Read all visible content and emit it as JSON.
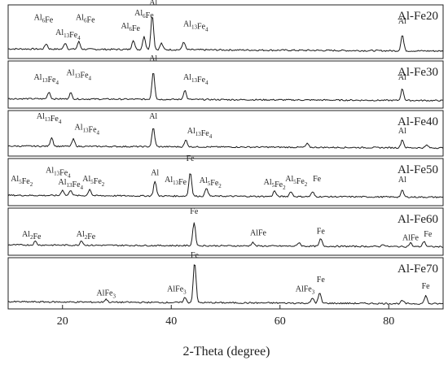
{
  "chart_data": {
    "type": "line",
    "xlabel": "2-Theta (degree)",
    "xlim": [
      10,
      90
    ],
    "xticks": [
      20,
      40,
      60,
      80
    ],
    "grid": false,
    "panels": [
      {
        "name": "Al-Fe20",
        "baseline": 0.18,
        "peaks": [
          [
            17,
            0.1
          ],
          [
            20.5,
            0.12
          ],
          [
            23,
            0.14
          ],
          [
            33,
            0.18
          ],
          [
            35,
            0.25
          ],
          [
            36.5,
            0.65
          ],
          [
            38.2,
            0.12
          ],
          [
            42.3,
            0.15
          ],
          [
            82.5,
            0.3
          ]
        ],
        "labels": [
          {
            "parts": [
              [
                "Al",
                ""
              ],
              [
                "6",
                "sub"
              ],
              [
                "Fe",
                ""
              ]
            ],
            "x": 16.5,
            "y": 0.72
          },
          {
            "parts": [
              [
                "Al",
                ""
              ],
              [
                "13",
                "sub"
              ],
              [
                "Fe",
                ""
              ],
              [
                "4",
                "sub"
              ]
            ],
            "x": 21.0,
            "y": 0.44
          },
          {
            "parts": [
              [
                "Al",
                ""
              ],
              [
                "6",
                "sub"
              ],
              [
                "Fe",
                ""
              ]
            ],
            "x": 24.2,
            "y": 0.72
          },
          {
            "parts": [
              [
                "Al",
                ""
              ],
              [
                "6",
                "sub"
              ],
              [
                "Fe",
                ""
              ]
            ],
            "x": 32.5,
            "y": 0.56
          },
          {
            "parts": [
              [
                "Al",
                ""
              ],
              [
                "6",
                "sub"
              ],
              [
                "Fe",
                ""
              ]
            ],
            "x": 35.0,
            "y": 0.8
          },
          {
            "parts": [
              [
                "Al",
                ""
              ]
            ],
            "x": 36.7,
            "y": 1.0
          },
          {
            "parts": [
              [
                "Al",
                ""
              ],
              [
                "13",
                "sub"
              ],
              [
                "Fe",
                ""
              ],
              [
                "4",
                "sub"
              ]
            ],
            "x": 44.5,
            "y": 0.6
          },
          {
            "parts": [
              [
                "Al",
                ""
              ]
            ],
            "x": 82.5,
            "y": 0.65
          }
        ]
      },
      {
        "name": "Al-Fe30",
        "baseline": 0.2,
        "peaks": [
          [
            17.5,
            0.15
          ],
          [
            21.5,
            0.13
          ],
          [
            36.7,
            0.6
          ],
          [
            42.5,
            0.2
          ],
          [
            82.5,
            0.25
          ]
        ],
        "labels": [
          {
            "parts": [
              [
                "Al",
                ""
              ],
              [
                "13",
                "sub"
              ],
              [
                "Fe",
                ""
              ],
              [
                "4",
                "sub"
              ]
            ],
            "x": 17.0,
            "y": 0.6
          },
          {
            "parts": [
              [
                "Al",
                ""
              ],
              [
                "13",
                "sub"
              ],
              [
                "Fe",
                ""
              ],
              [
                "4",
                "sub"
              ]
            ],
            "x": 23.0,
            "y": 0.7
          },
          {
            "parts": [
              [
                "Al",
                ""
              ]
            ],
            "x": 36.7,
            "y": 1.0
          },
          {
            "parts": [
              [
                "Al",
                ""
              ],
              [
                "13",
                "sub"
              ],
              [
                "Fe",
                ""
              ],
              [
                "4",
                "sub"
              ]
            ],
            "x": 44.5,
            "y": 0.6
          },
          {
            "parts": [
              [
                "Al",
                ""
              ]
            ],
            "x": 82.5,
            "y": 0.6
          }
        ]
      },
      {
        "name": "Al-Fe40",
        "baseline": 0.22,
        "peaks": [
          [
            18,
            0.2
          ],
          [
            22,
            0.16
          ],
          [
            36.7,
            0.42
          ],
          [
            42.7,
            0.15
          ],
          [
            65,
            0.08
          ],
          [
            82.5,
            0.18
          ],
          [
            87,
            0.06
          ]
        ],
        "labels": [
          {
            "parts": [
              [
                "Al",
                ""
              ],
              [
                "13",
                "sub"
              ],
              [
                "Fe",
                ""
              ],
              [
                "4",
                "sub"
              ]
            ],
            "x": 17.5,
            "y": 0.82
          },
          {
            "parts": [
              [
                "Al",
                ""
              ],
              [
                "13",
                "sub"
              ],
              [
                "Fe",
                ""
              ],
              [
                "4",
                "sub"
              ]
            ],
            "x": 24.5,
            "y": 0.58
          },
          {
            "parts": [
              [
                "Al",
                ""
              ]
            ],
            "x": 36.7,
            "y": 0.82
          },
          {
            "parts": [
              [
                "Al",
                ""
              ],
              [
                "13",
                "sub"
              ],
              [
                "Fe",
                ""
              ],
              [
                "4",
                "sub"
              ]
            ],
            "x": 45.2,
            "y": 0.5
          },
          {
            "parts": [
              [
                "Al",
                ""
              ]
            ],
            "x": 82.5,
            "y": 0.5
          }
        ]
      },
      {
        "name": "Al-Fe50",
        "baseline": 0.22,
        "peaks": [
          [
            20,
            0.12
          ],
          [
            21.5,
            0.12
          ],
          [
            25,
            0.14
          ],
          [
            37,
            0.32
          ],
          [
            43.5,
            0.52
          ],
          [
            46.5,
            0.18
          ],
          [
            59,
            0.12
          ],
          [
            62,
            0.11
          ],
          [
            66,
            0.1
          ],
          [
            82.5,
            0.14
          ]
        ],
        "labels": [
          {
            "parts": [
              [
                "Al",
                ""
              ],
              [
                "5",
                "sub"
              ],
              [
                "Fe",
                ""
              ],
              [
                "2",
                "sub"
              ]
            ],
            "x": 12.5,
            "y": 0.52
          },
          {
            "parts": [
              [
                "Al",
                ""
              ],
              [
                "13",
                "sub"
              ],
              [
                "Fe",
                ""
              ],
              [
                "4",
                "sub"
              ]
            ],
            "x": 19.2,
            "y": 0.7
          },
          {
            "parts": [
              [
                "Al",
                ""
              ],
              [
                "13",
                "sub"
              ],
              [
                "Fe",
                ""
              ],
              [
                "4",
                "sub"
              ]
            ],
            "x": 21.5,
            "y": 0.45
          },
          {
            "parts": [
              [
                "Al",
                ""
              ],
              [
                "5",
                "sub"
              ],
              [
                "Fe",
                ""
              ],
              [
                "2",
                "sub"
              ]
            ],
            "x": 25.7,
            "y": 0.52
          },
          {
            "parts": [
              [
                "Al",
                ""
              ]
            ],
            "x": 37.0,
            "y": 0.65
          },
          {
            "parts": [
              [
                "Al",
                ""
              ],
              [
                "13",
                "sub"
              ],
              [
                "Fe",
                ""
              ]
            ],
            "x": 40.8,
            "y": 0.5
          },
          {
            "parts": [
              [
                "Fe",
                ""
              ]
            ],
            "x": 43.5,
            "y": 0.95
          },
          {
            "parts": [
              [
                "Al",
                ""
              ],
              [
                "5",
                "sub"
              ],
              [
                "Fe",
                ""
              ],
              [
                "2",
                "sub"
              ]
            ],
            "x": 47.2,
            "y": 0.48
          },
          {
            "parts": [
              [
                "Al",
                ""
              ],
              [
                "5",
                "sub"
              ],
              [
                "Fe",
                ""
              ],
              [
                "2",
                "sub"
              ]
            ],
            "x": 59.0,
            "y": 0.45
          },
          {
            "parts": [
              [
                "Al",
                ""
              ],
              [
                "5",
                "sub"
              ],
              [
                "Fe",
                ""
              ],
              [
                "2",
                "sub"
              ]
            ],
            "x": 63.0,
            "y": 0.52
          },
          {
            "parts": [
              [
                "Fe",
                ""
              ]
            ],
            "x": 66.8,
            "y": 0.52
          },
          {
            "parts": [
              [
                "Al",
                ""
              ]
            ],
            "x": 82.5,
            "y": 0.5
          }
        ]
      },
      {
        "name": "Al-Fe60",
        "baseline": 0.22,
        "peaks": [
          [
            15,
            0.08
          ],
          [
            23.5,
            0.1
          ],
          [
            44.2,
            0.5
          ],
          [
            55,
            0.08
          ],
          [
            63.5,
            0.08
          ],
          [
            67.5,
            0.16
          ],
          [
            79,
            0.05
          ],
          [
            84,
            0.08
          ],
          [
            86.5,
            0.12
          ]
        ],
        "labels": [
          {
            "parts": [
              [
                "Al",
                ""
              ],
              [
                "2",
                "sub"
              ],
              [
                "Fe",
                ""
              ]
            ],
            "x": 14.3,
            "y": 0.4
          },
          {
            "parts": [
              [
                "Al",
                ""
              ],
              [
                "2",
                "sub"
              ],
              [
                "Fe",
                ""
              ]
            ],
            "x": 24.3,
            "y": 0.4
          },
          {
            "parts": [
              [
                "Fe",
                ""
              ]
            ],
            "x": 44.2,
            "y": 0.88
          },
          {
            "parts": [
              [
                "AlFe",
                ""
              ]
            ],
            "x": 56.0,
            "y": 0.42
          },
          {
            "parts": [
              [
                "Fe",
                ""
              ]
            ],
            "x": 67.5,
            "y": 0.46
          },
          {
            "parts": [
              [
                "AlFe",
                ""
              ]
            ],
            "x": 84.0,
            "y": 0.32
          },
          {
            "parts": [
              [
                "Fe",
                ""
              ]
            ],
            "x": 87.2,
            "y": 0.4
          }
        ]
      },
      {
        "name": "Al-Fe70",
        "baseline": 0.14,
        "peaks": [
          [
            28,
            0.06
          ],
          [
            42.5,
            0.1
          ],
          [
            44.3,
            0.8
          ],
          [
            66,
            0.1
          ],
          [
            67.3,
            0.2
          ],
          [
            82.5,
            0.06
          ],
          [
            86.8,
            0.16
          ]
        ],
        "labels": [
          {
            "parts": [
              [
                "AlFe",
                ""
              ],
              [
                "3",
                "sub"
              ]
            ],
            "x": 28.0,
            "y": 0.26
          },
          {
            "parts": [
              [
                "AlFe",
                ""
              ],
              [
                "3",
                "sub"
              ]
            ],
            "x": 41.0,
            "y": 0.34
          },
          {
            "parts": [
              [
                "Fe",
                ""
              ]
            ],
            "x": 44.3,
            "y": 1.0
          },
          {
            "parts": [
              [
                "AlFe",
                ""
              ],
              [
                "3",
                "sub"
              ]
            ],
            "x": 64.6,
            "y": 0.34
          },
          {
            "parts": [
              [
                "Fe",
                ""
              ]
            ],
            "x": 67.5,
            "y": 0.52
          },
          {
            "parts": [
              [
                "Fe",
                ""
              ]
            ],
            "x": 86.8,
            "y": 0.4
          }
        ]
      }
    ]
  }
}
